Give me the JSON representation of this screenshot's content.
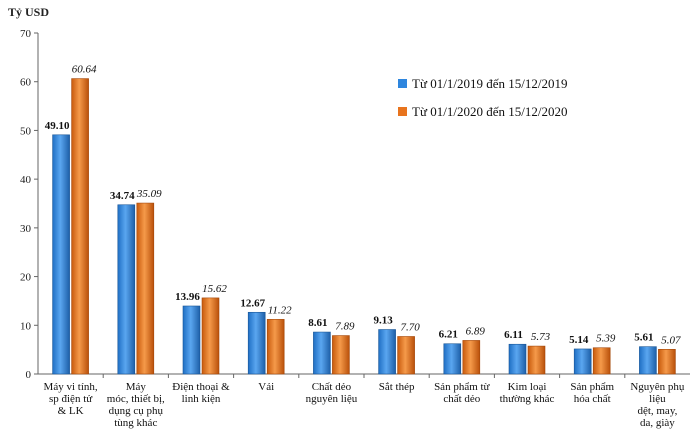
{
  "chart_data": {
    "type": "bar",
    "unit_label": "Tỷ USD",
    "ylim": [
      0,
      70
    ],
    "yticks": [
      0,
      10,
      20,
      30,
      40,
      50,
      60,
      70
    ],
    "legend_position": "top-right",
    "categories": [
      [
        "Máy vi tính,",
        "sp điện tử",
        "& LK"
      ],
      [
        "Máy",
        "móc, thiết bị,",
        "dụng cụ phụ",
        "tùng khác"
      ],
      [
        "Điện thoại &",
        "linh kiện"
      ],
      [
        "Vải"
      ],
      [
        "Chất dẻo",
        "nguyên liệu"
      ],
      [
        "Sắt thép"
      ],
      [
        "Sản phẩm từ",
        "chất dẻo"
      ],
      [
        "Kim loại",
        "thường khác"
      ],
      [
        "Sản phẩm",
        "hóa chất"
      ],
      [
        "Nguyên phụ",
        "liệu",
        "dệt, may,",
        "da, giày"
      ]
    ],
    "series": [
      {
        "name": "Từ 01/1/2019  đến 15/12/2019",
        "color": "#2e86de",
        "values": [
          49.1,
          34.74,
          13.96,
          12.67,
          8.61,
          9.13,
          6.21,
          6.11,
          5.14,
          5.61
        ],
        "labels": [
          "49.10",
          "34.74",
          "13.96",
          "12.67",
          "8.61",
          "9.13",
          "6.21",
          "6.11",
          "5.14",
          "5.61"
        ]
      },
      {
        "name": "Từ 01/1/2020  đến 15/12/2020",
        "color": "#e8741e",
        "values": [
          60.64,
          35.09,
          15.62,
          11.22,
          7.89,
          7.7,
          6.89,
          5.73,
          5.39,
          5.07
        ],
        "labels": [
          "60.64",
          "35.09",
          "15.62",
          "11.22",
          "7.89",
          "7.70",
          "6.89",
          "5.73",
          "5.39",
          "5.07"
        ]
      }
    ]
  }
}
